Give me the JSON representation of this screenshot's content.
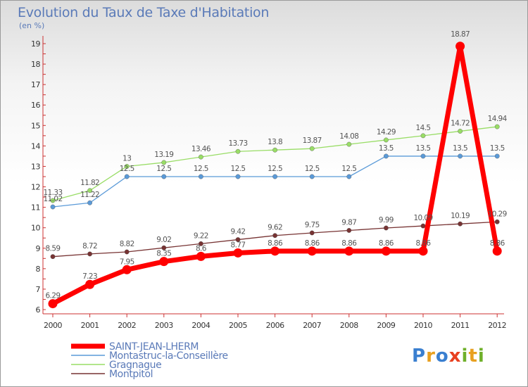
{
  "title": "Evolution du Taux de Taxe d'Habitation",
  "subtitle": "(en %)",
  "logo": {
    "text": "Proxiti",
    "colors": [
      "#3a7fd0",
      "#e8a020",
      "#3a7fd0",
      "#e84020",
      "#6fb02a",
      "#e8a020",
      "#6fb02a"
    ]
  },
  "chart_data": {
    "type": "line",
    "x": [
      "2000",
      "2001",
      "2002",
      "2003",
      "2004",
      "2005",
      "2006",
      "2007",
      "2008",
      "2009",
      "2010",
      "2011",
      "2012"
    ],
    "ylim": [
      6,
      19
    ],
    "yticks": [
      6,
      7,
      8,
      9,
      10,
      11,
      12,
      13,
      14,
      15,
      16,
      17,
      18,
      19
    ],
    "grid": false,
    "legend_placement": "bottom-left",
    "series": [
      {
        "name": "SAINT-JEAN-LHERM",
        "color": "#ff0000",
        "width": 7,
        "values": [
          6.29,
          7.23,
          7.95,
          8.35,
          8.6,
          8.77,
          8.86,
          8.86,
          8.86,
          8.86,
          8.86,
          18.87,
          8.86
        ],
        "labels": [
          "6.29",
          "7.23",
          "7.95",
          "8.35",
          "8.6",
          "8.77",
          "8.86",
          "8.86",
          "8.86",
          "8.86",
          "8.86",
          "18.87",
          "8.86"
        ]
      },
      {
        "name": "Montastruc-la-Conseillère",
        "color": "#5a9ad8",
        "width": 1.3,
        "values": [
          11.02,
          11.22,
          12.5,
          12.5,
          12.5,
          12.5,
          12.5,
          12.5,
          12.5,
          13.5,
          13.5,
          13.5,
          13.5
        ],
        "labels": [
          "11.02",
          "11.22",
          "12.5",
          "12.5",
          "12.5",
          "12.5",
          "12.5",
          "12.5",
          "12.5",
          "13.5",
          "13.5",
          "13.5",
          "13.5"
        ]
      },
      {
        "name": "Gragnague",
        "color": "#99dd66",
        "width": 1.3,
        "values": [
          11.33,
          11.82,
          13,
          13.19,
          13.46,
          13.73,
          13.8,
          13.87,
          14.08,
          14.29,
          14.5,
          14.72,
          14.94
        ],
        "labels": [
          "11.33",
          "11.82",
          "13",
          "13.19",
          "13.46",
          "13.73",
          "13.8",
          "13.87",
          "14.08",
          "14.29",
          "14.5",
          "14.72",
          "14.94"
        ]
      },
      {
        "name": "Montpitol",
        "color": "#773333",
        "width": 1.3,
        "values": [
          8.59,
          8.72,
          8.82,
          9.02,
          9.22,
          9.42,
          9.62,
          9.75,
          9.87,
          9.99,
          10.09,
          10.19,
          10.29
        ],
        "labels": [
          "8.59",
          "8.72",
          "8.82",
          "9.02",
          "9.22",
          "9.42",
          "9.62",
          "9.75",
          "9.87",
          "9.99",
          "10.09",
          "10.19",
          "10.29"
        ]
      }
    ]
  }
}
